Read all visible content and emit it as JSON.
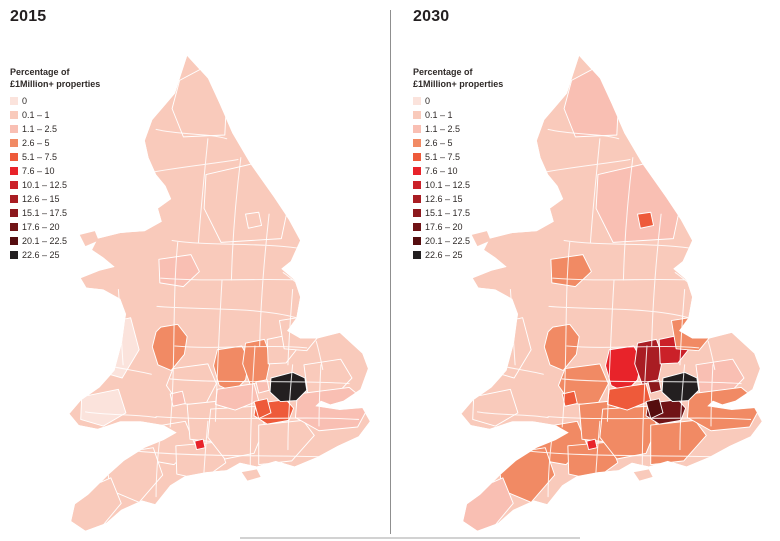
{
  "panels": [
    {
      "title": "2015"
    },
    {
      "title": "2030"
    }
  ],
  "legend": {
    "title_line1": "Percentage of",
    "title_line2": "£1Million+ properties",
    "entries": [
      {
        "label": "0",
        "color": "#fbe3dc"
      },
      {
        "label": "0.1 – 1",
        "color": "#f9cabb"
      },
      {
        "label": "1.1  – 2.5",
        "color": "#f9bfb3"
      },
      {
        "label": "2.6 – 5",
        "color": "#f18a64"
      },
      {
        "label": "5.1 – 7.5",
        "color": "#ee5a3a"
      },
      {
        "label": "7.6 – 10",
        "color": "#e8232a"
      },
      {
        "label": "10.1 – 12.5",
        "color": "#cb2129"
      },
      {
        "label": "12.6 – 15",
        "color": "#a91d23"
      },
      {
        "label": "15.1 – 17.5",
        "color": "#8c181d"
      },
      {
        "label": "17.6 – 20",
        "color": "#701316"
      },
      {
        "label": "20.1 – 22.5",
        "color": "#550d0f"
      },
      {
        "label": "22.6 – 25",
        "color": "#231f20"
      }
    ]
  },
  "maps": [
    {
      "title": "2015",
      "base_class": 1,
      "regions": {
        "northumberland": 1,
        "north_yorkshire": 1,
        "york": 1,
        "cheshire": 2,
        "warwickshire": 3,
        "cotswolds": 1,
        "bristol": 2,
        "oxfordshire": 3,
        "buckinghamshire": 3,
        "hertfordshire": 1,
        "cambridgeshire": 1,
        "essex": 1,
        "london": 11,
        "windsor": 2,
        "berkshire": 2,
        "surrey": 4,
        "surrey_wedge": 4,
        "kent": 2,
        "sussex": 1,
        "hampshire": 1,
        "wiltshire": 1,
        "somerset": 1,
        "dorset": 1,
        "devon": 1,
        "cornwall": 1,
        "wales_mid": 0,
        "wales_sw": 0,
        "poole": 5
      }
    },
    {
      "title": "2030",
      "base_class": 1,
      "regions": {
        "northumberland": 2,
        "north_yorkshire": 2,
        "york": 4,
        "cheshire": 3,
        "warwickshire": 3,
        "cotswolds": 3,
        "bristol": 4,
        "oxfordshire": 5,
        "buckinghamshire": 7,
        "hertfordshire": 6,
        "cambridgeshire": 3,
        "essex": 2,
        "london": 11,
        "windsor": 8,
        "berkshire": 4,
        "surrey": 9,
        "surrey_wedge": 10,
        "kent": 3,
        "sussex": 3,
        "hampshire": 3,
        "wiltshire": 3,
        "somerset": 3,
        "dorset": 3,
        "devon": 3,
        "cornwall": 2,
        "wales_mid": 1,
        "wales_sw": 1,
        "poole": 5
      }
    }
  ]
}
